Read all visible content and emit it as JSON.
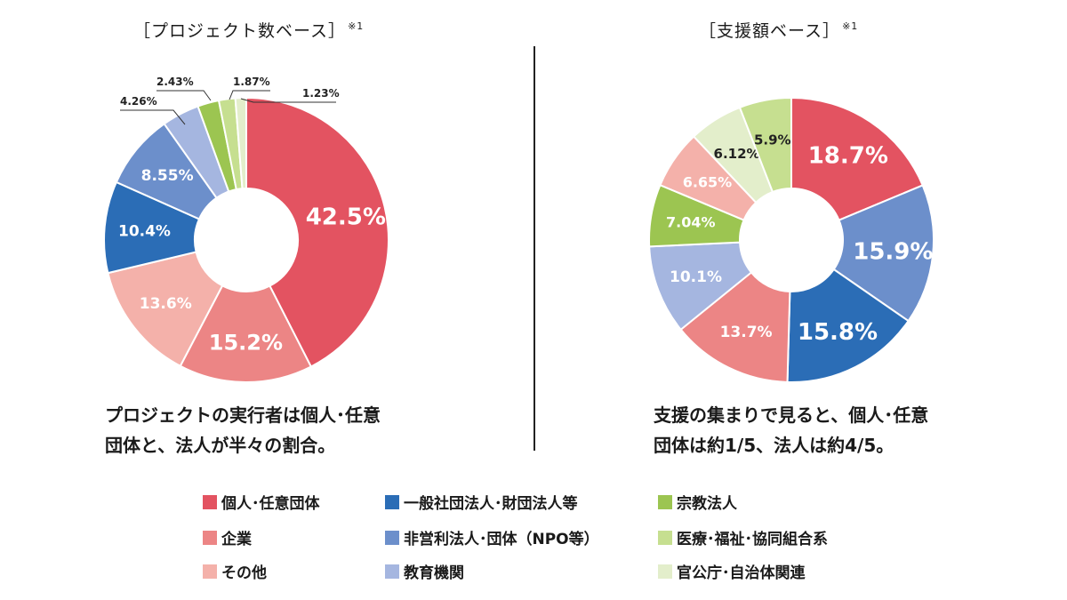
{
  "left_panel": {
    "title": "［プロジェクト数ベース］",
    "note": "※1",
    "caption_lines": [
      "プロジェクトの実行者は個人･任意",
      "団体と、法人が半々の割合。"
    ]
  },
  "right_panel": {
    "title": "［支援額ベース］",
    "note": "※1",
    "caption_lines": [
      "支援の集まりで見ると、個人･任意",
      "団体は約1/5、法人は約4/5。"
    ]
  },
  "colors": {
    "individual": "#e35361",
    "corporation": "#ec8585",
    "other": "#f4b1aa",
    "general_association": "#2b6db6",
    "npo": "#6c8fcb",
    "education": "#a5b6e0",
    "religious": "#9cc551",
    "medical": "#c6df90",
    "government": "#e3eecb"
  },
  "legend": [
    {
      "key": "individual",
      "label": "個人･任意団体"
    },
    {
      "key": "general_association",
      "label": "一般社団法人･財団法人等"
    },
    {
      "key": "religious",
      "label": "宗教法人"
    },
    {
      "key": "corporation",
      "label": "企業"
    },
    {
      "key": "npo",
      "label": "非営利法人･団体（NPO等）"
    },
    {
      "key": "medical",
      "label": "医療･福祉･協同組合系"
    },
    {
      "key": "other",
      "label": "その他"
    },
    {
      "key": "education",
      "label": "教育機関"
    },
    {
      "key": "government",
      "label": "官公庁･自治体関連"
    }
  ],
  "chart_data": [
    {
      "type": "pie",
      "title": "［プロジェクト数ベース］",
      "donut": true,
      "slices": [
        {
          "key": "individual",
          "label": "42.5%",
          "value": 42.5
        },
        {
          "key": "corporation",
          "label": "15.2%",
          "value": 15.2
        },
        {
          "key": "other",
          "label": "13.6%",
          "value": 13.6
        },
        {
          "key": "general_association",
          "label": "10.4%",
          "value": 10.4
        },
        {
          "key": "npo",
          "label": "8.55%",
          "value": 8.55
        },
        {
          "key": "education",
          "label": "4.26%",
          "value": 4.26
        },
        {
          "key": "religious",
          "label": "2.43%",
          "value": 2.43
        },
        {
          "key": "medical",
          "label": "1.87%",
          "value": 1.87
        },
        {
          "key": "government",
          "label": "1.23%",
          "value": 1.23
        }
      ]
    },
    {
      "type": "pie",
      "title": "［支援額ベース］",
      "donut": true,
      "slices": [
        {
          "key": "individual",
          "label": "18.7%",
          "value": 18.7
        },
        {
          "key": "npo",
          "label": "15.9%",
          "value": 15.9
        },
        {
          "key": "general_association",
          "label": "15.8%",
          "value": 15.8
        },
        {
          "key": "corporation",
          "label": "13.7%",
          "value": 13.7
        },
        {
          "key": "education",
          "label": "10.1%",
          "value": 10.1
        },
        {
          "key": "religious",
          "label": "7.04%",
          "value": 7.04
        },
        {
          "key": "other",
          "label": "6.65%",
          "value": 6.65
        },
        {
          "key": "government",
          "label": "6.12%",
          "value": 6.12
        },
        {
          "key": "medical",
          "label": "5.9%",
          "value": 5.9
        }
      ]
    }
  ]
}
